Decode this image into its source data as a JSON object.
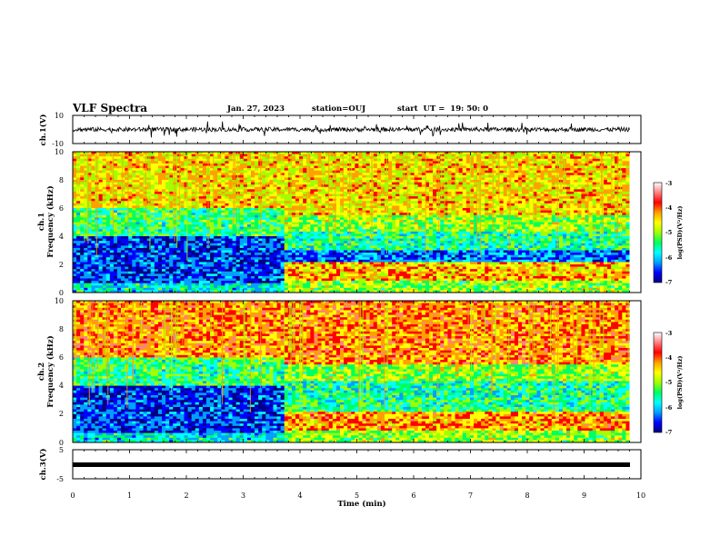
{
  "header": {
    "title": "VLF Spectra",
    "date": "Jan. 27, 2023",
    "station": "station=OUJ",
    "start": "start  UT =  19: 50: 0"
  },
  "panels": {
    "ch1_waveform": {
      "ylabel": "ch.1(V)",
      "ticks": [
        "10",
        "-10"
      ]
    },
    "ch1_spectrogram": {
      "ylabel_line1": "ch.1",
      "ylabel_line2": "Frequency (kHz)",
      "ticks": [
        "10",
        "8",
        "6",
        "4",
        "2",
        "0"
      ]
    },
    "ch2_spectrogram": {
      "ylabel_line1": "ch.2",
      "ylabel_line2": "Frequency (kHz)",
      "ticks": [
        "10",
        "8",
        "6",
        "4",
        "2",
        "0"
      ]
    },
    "ch3_waveform": {
      "ylabel": "ch.3(V)",
      "ticks": [
        "5",
        "-5"
      ]
    }
  },
  "xaxis": {
    "label": "Time (min)",
    "ticks": [
      "0",
      "1",
      "2",
      "3",
      "4",
      "5",
      "6",
      "7",
      "8",
      "9",
      "10"
    ]
  },
  "colorbars": {
    "label": "log(PSD)(V²/Hz)",
    "ticks": [
      "-3",
      "-4",
      "-5",
      "-6",
      "-7"
    ],
    "colors": [
      "#000080",
      "#0000ff",
      "#00a0ff",
      "#00ffff",
      "#00ff60",
      "#a0ff00",
      "#ffff00",
      "#ffa000",
      "#ff0000",
      "#ff8080",
      "#ffffff"
    ]
  },
  "chart_data": [
    {
      "type": "line",
      "title": "",
      "ylabel": "ch.1(V)",
      "xlabel": "",
      "xlim": [
        0,
        10
      ],
      "ylim": [
        -10,
        10
      ],
      "description_values": {
        "baseline": 0,
        "noise_amplitude": 1.5,
        "spike_min": -6,
        "spike_max": 6
      }
    },
    {
      "type": "heatmap",
      "ylabel": "Frequency (kHz)",
      "xlim": [
        0,
        10
      ],
      "ylim": [
        0,
        10
      ],
      "data_end_time": 9.8,
      "regime_change_time": 3.7,
      "clim": [
        -7,
        -3
      ]
    },
    {
      "type": "heatmap",
      "ylabel": "Frequency (kHz)",
      "xlim": [
        0,
        10
      ],
      "ylim": [
        0,
        10
      ],
      "data_end_time": 9.8,
      "regime_change_time": 3.7,
      "clim": [
        -7,
        -3
      ]
    },
    {
      "type": "line",
      "ylabel": "ch.3(V)",
      "xlabel": "Time (min)",
      "xlim": [
        0,
        10
      ],
      "ylim": [
        -5,
        5
      ],
      "x": [
        0,
        9.8
      ],
      "y": [
        0,
        0
      ]
    }
  ]
}
